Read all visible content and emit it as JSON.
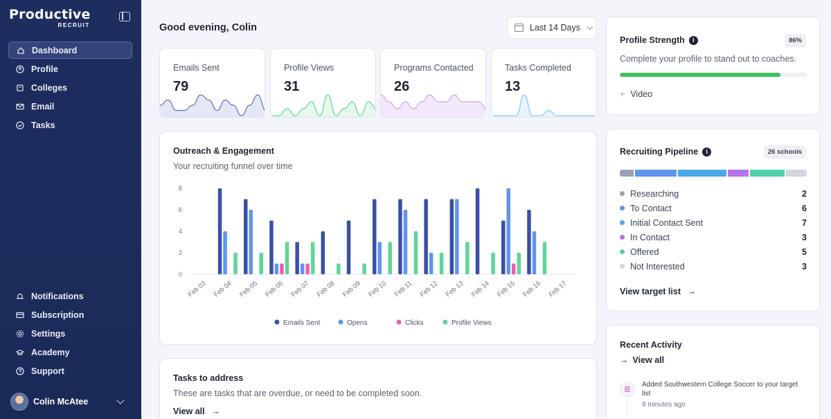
{
  "brand": {
    "name": "Productive",
    "sub": "RECRUIT"
  },
  "nav_top": [
    {
      "label": "Dashboard",
      "icon": "home-icon",
      "active": true
    },
    {
      "label": "Profile",
      "icon": "user-circle-icon"
    },
    {
      "label": "Colleges",
      "icon": "building-icon"
    },
    {
      "label": "Email",
      "icon": "mail-icon"
    },
    {
      "label": "Tasks",
      "icon": "check-circle-icon"
    }
  ],
  "nav_bottom": [
    {
      "label": "Notifications",
      "icon": "bell-icon"
    },
    {
      "label": "Subscription",
      "icon": "card-icon"
    },
    {
      "label": "Settings",
      "icon": "gear-icon"
    },
    {
      "label": "Academy",
      "icon": "graduation-cap-icon"
    },
    {
      "label": "Support",
      "icon": "help-circle-icon"
    }
  ],
  "user": {
    "name": "Colin McAtee"
  },
  "header": {
    "greeting": "Good evening, Colin",
    "range": "Last 14 Days"
  },
  "stats": [
    {
      "label": "Emails Sent",
      "value": "79",
      "color": "#5b6fb7",
      "fill": "#e4e8f5",
      "spark": [
        2,
        3,
        1,
        1,
        2,
        4,
        3,
        1,
        3,
        2,
        0,
        2,
        4,
        1
      ]
    },
    {
      "label": "Profile Views",
      "value": "31",
      "color": "#5fd49a",
      "fill": "#e6f8ee",
      "spark": [
        0,
        0,
        1,
        0,
        1,
        2,
        0,
        3,
        0,
        1,
        2,
        0,
        2,
        1
      ]
    },
    {
      "label": "Programs Contacted",
      "value": "26",
      "color": "#c9a4ec",
      "fill": "#f3e9fc",
      "spark": [
        3,
        2,
        1,
        2,
        1,
        2,
        3,
        2,
        2,
        3,
        2,
        2,
        2,
        1
      ]
    },
    {
      "label": "Tasks Completed",
      "value": "13",
      "color": "#8bc4f2",
      "fill": "#e7f3fd",
      "spark": [
        0,
        0,
        0,
        0,
        4,
        0,
        0,
        1,
        0,
        0,
        0,
        0,
        0,
        0
      ]
    }
  ],
  "chart_data": {
    "type": "bar",
    "title": "Outreach & Engagement",
    "subtitle": "Your recruiting funnel over time",
    "categories": [
      "Feb 03",
      "Feb 04",
      "Feb 05",
      "Feb 06",
      "Feb 07",
      "Feb 08",
      "Feb 09",
      "Feb 10",
      "Feb 11",
      "Feb 12",
      "Feb 13",
      "Feb 14",
      "Feb 15",
      "Feb 16",
      "Feb 17"
    ],
    "ylim": [
      0,
      8
    ],
    "yticks": [
      "0",
      "2",
      "4",
      "6",
      "8"
    ],
    "grid": false,
    "legend_placement": "bottom",
    "series": [
      {
        "name": "Emails Sent",
        "color": "#3b4fa8",
        "values": [
          0,
          8,
          7,
          5,
          3,
          4,
          5,
          7,
          7,
          7,
          7,
          8,
          5,
          6,
          0
        ]
      },
      {
        "name": "Opens",
        "color": "#5f95ef",
        "values": [
          0,
          4,
          6,
          1,
          1,
          0,
          0,
          3,
          6,
          2,
          7,
          0,
          8,
          4,
          0
        ]
      },
      {
        "name": "Clicks",
        "color": "#ec5fb0",
        "values": [
          0,
          0,
          0,
          1,
          1,
          0,
          0,
          0,
          0,
          0,
          0,
          0,
          1,
          0,
          0
        ]
      },
      {
        "name": "Profile Views",
        "color": "#5fd49a",
        "values": [
          0,
          2,
          2,
          3,
          3,
          1,
          1,
          3,
          4,
          2,
          3,
          2,
          2,
          3,
          0
        ]
      }
    ]
  },
  "tasks": {
    "title": "Tasks to address",
    "subtitle": "These are tasks that are overdue, or need to be completed soon.",
    "link": "View all"
  },
  "profile_strength": {
    "title": "Profile Strength",
    "percent_label": "86%",
    "progress": 0.86,
    "subtitle": "Complete your profile to stand out to coaches.",
    "add_item": "Video"
  },
  "pipeline": {
    "title": "Recruiting Pipeline",
    "badge": "26 schools",
    "link": "View target list",
    "stages": [
      {
        "name": "Researching",
        "count": "2",
        "value": 2,
        "color": "#9aa2b1"
      },
      {
        "name": "To Contact",
        "count": "6",
        "value": 6,
        "color": "#5f95ef"
      },
      {
        "name": "Initial Contact Sent",
        "count": "7",
        "value": 7,
        "color": "#4ba9ea"
      },
      {
        "name": "In Contact",
        "count": "3",
        "value": 3,
        "color": "#b673ec"
      },
      {
        "name": "Offered",
        "count": "5",
        "value": 5,
        "color": "#4fcfa8"
      },
      {
        "name": "Not Interested",
        "count": "3",
        "value": 3,
        "color": "#d3d6dc"
      }
    ]
  },
  "activity": {
    "title": "Recent Activity",
    "link": "View all",
    "items": [
      {
        "text": "Added Southwestern College Soccer to your target list",
        "time": "9 minutes ago",
        "icon": "list-icon"
      }
    ]
  }
}
